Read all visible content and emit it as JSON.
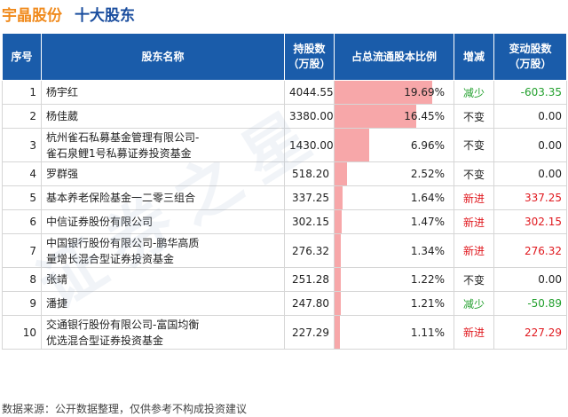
{
  "header": {
    "company": "宇晶股份",
    "section": "十大股东"
  },
  "columns": {
    "rank": "序号",
    "name": "股东名称",
    "shares_line1": "持股数",
    "shares_line2": "（万股）",
    "pct": "占总流通股本比例",
    "change": "增减",
    "delta_line1": "变动股数",
    "delta_line2": "（万股）"
  },
  "rows": [
    {
      "rank": "1",
      "name1": "杨宇红",
      "name2": "",
      "shares": "4044.55",
      "pct": "19.69%",
      "pct_value": 19.69,
      "change": "减少",
      "delta": "-603.35",
      "status": "dec"
    },
    {
      "rank": "2",
      "name1": "杨佳葳",
      "name2": "",
      "shares": "3380.00",
      "pct": "16.45%",
      "pct_value": 16.45,
      "change": "不变",
      "delta": "0.00",
      "status": "same"
    },
    {
      "rank": "3",
      "name1": "杭州雀石私募基金管理有限公司-",
      "name2": "雀石泉鲤1号私募证券投资基金",
      "shares": "1430.00",
      "pct": "6.96%",
      "pct_value": 6.96,
      "change": "不变",
      "delta": "0.00",
      "status": "same"
    },
    {
      "rank": "4",
      "name1": "罗群强",
      "name2": "",
      "shares": "518.20",
      "pct": "2.52%",
      "pct_value": 2.52,
      "change": "不变",
      "delta": "0.00",
      "status": "same"
    },
    {
      "rank": "5",
      "name1": "基本养老保险基金一二零三组合",
      "name2": "",
      "shares": "337.25",
      "pct": "1.64%",
      "pct_value": 1.64,
      "change": "新进",
      "delta": "337.25",
      "status": "inc"
    },
    {
      "rank": "6",
      "name1": "中信证券股份有限公司",
      "name2": "",
      "shares": "302.15",
      "pct": "1.47%",
      "pct_value": 1.47,
      "change": "新进",
      "delta": "302.15",
      "status": "inc"
    },
    {
      "rank": "7",
      "name1": "中国银行股份有限公司-鹏华高质",
      "name2": "量增长混合型证券投资基金",
      "shares": "276.32",
      "pct": "1.34%",
      "pct_value": 1.34,
      "change": "新进",
      "delta": "276.32",
      "status": "inc"
    },
    {
      "rank": "8",
      "name1": "张靖",
      "name2": "",
      "shares": "251.28",
      "pct": "1.22%",
      "pct_value": 1.22,
      "change": "不变",
      "delta": "0.00",
      "status": "same"
    },
    {
      "rank": "9",
      "name1": "潘捷",
      "name2": "",
      "shares": "247.80",
      "pct": "1.21%",
      "pct_value": 1.21,
      "change": "减少",
      "delta": "-50.89",
      "status": "dec"
    },
    {
      "rank": "10",
      "name1": "交通银行股份有限公司-富国均衡",
      "name2": "优选混合型证券投资基金",
      "shares": "227.29",
      "pct": "1.11%",
      "pct_value": 1.11,
      "change": "新进",
      "delta": "227.29",
      "status": "inc"
    }
  ],
  "pct_bar_max": 24,
  "colors": {
    "header_bg": "#1a5caa",
    "company_title": "#f08a1c",
    "section_title": "#1a4d9e",
    "bar": "#f7a7a9",
    "decrease": "#23a02e",
    "increase": "#e0181e"
  },
  "watermark": "证券之星",
  "footer": {
    "source": "数据来源：公开数据整理，仅供参考不构成投资建议"
  }
}
